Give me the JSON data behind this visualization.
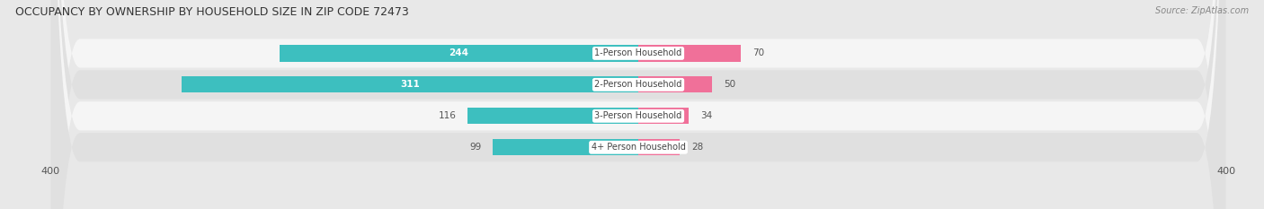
{
  "title": "OCCUPANCY BY OWNERSHIP BY HOUSEHOLD SIZE IN ZIP CODE 72473",
  "source": "Source: ZipAtlas.com",
  "categories": [
    "1-Person Household",
    "2-Person Household",
    "3-Person Household",
    "4+ Person Household"
  ],
  "owner_values": [
    244,
    311,
    116,
    99
  ],
  "renter_values": [
    70,
    50,
    34,
    28
  ],
  "owner_color": "#3DBFBF",
  "renter_color": "#F07099",
  "axis_max": 400,
  "axis_min": -400,
  "bg_color": "#e8e8e8",
  "row_colors_light": [
    "#f5f5f5",
    "#e0e0e0",
    "#f5f5f5",
    "#e0e0e0"
  ],
  "title_fontsize": 9,
  "bar_height": 0.52
}
